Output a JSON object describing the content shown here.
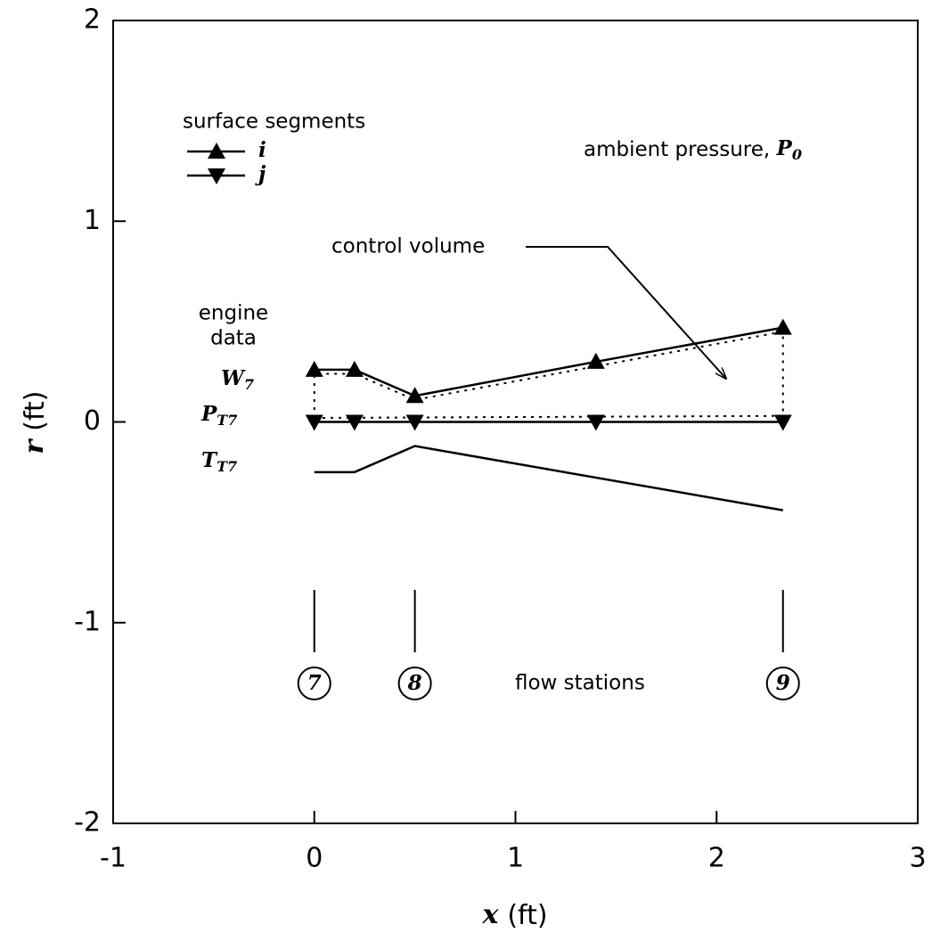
{
  "chart_data": {
    "type": "line",
    "xlabel": {
      "symbol": "x",
      "unit": "(ft)"
    },
    "ylabel": {
      "symbol": "r",
      "unit": "(ft)"
    },
    "xlim": [
      -1,
      3
    ],
    "xticks": [
      -1,
      0,
      1,
      2,
      3
    ],
    "ylim": [
      -2,
      2
    ],
    "yticks": [
      -2,
      -1,
      0,
      1,
      2
    ],
    "legend": {
      "title": "surface segments",
      "position": "upper left"
    },
    "series": [
      {
        "name": "i",
        "marker": "triangle-up",
        "color": "#000000",
        "style": "solid",
        "x": [
          0,
          0.2,
          0.5,
          1.4,
          2.33
        ],
        "values": [
          0.26,
          0.26,
          0.13,
          0.3,
          0.47
        ]
      },
      {
        "name": "j",
        "marker": "triangle-down",
        "color": "#000000",
        "style": "solid",
        "x": [
          0,
          0.2,
          0.5,
          1.4,
          2.33
        ],
        "values": [
          0,
          0,
          0,
          0,
          0
        ]
      },
      {
        "marker": "none",
        "color": "#000000",
        "style": "solid",
        "x": [
          0,
          0.2,
          0.5,
          2.33
        ],
        "values": [
          -0.25,
          -0.25,
          -0.12,
          -0.44
        ]
      },
      {
        "marker": "none",
        "color": "#000000",
        "style": "dotted",
        "x": [
          0,
          0,
          0.2,
          0.5,
          2.33,
          2.33,
          0
        ],
        "values": [
          0.02,
          0.24,
          0.24,
          0.11,
          0.45,
          0.03,
          0.02
        ]
      }
    ],
    "stations": [
      {
        "x": 0,
        "label": "7"
      },
      {
        "x": 0.5,
        "label": "8"
      },
      {
        "x": 2.33,
        "label": "9"
      }
    ],
    "annotations": {
      "ambient": {
        "text": "ambient pressure, ",
        "var": "P",
        "sub": "0"
      },
      "control_volume": "control volume",
      "engine_data": [
        "engine",
        "data"
      ],
      "W": {
        "var": "W",
        "sub": "7"
      },
      "P": {
        "var": "P",
        "sub": "T7"
      },
      "T": {
        "var": "T",
        "sub": "T7"
      },
      "flow_stations": "flow stations"
    }
  }
}
